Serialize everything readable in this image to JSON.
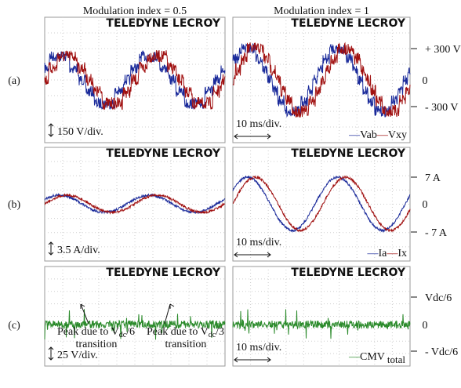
{
  "column_titles": [
    "Modulation index = 0.5",
    "Modulation index = 1"
  ],
  "logo": "TELEDYNE LECROY",
  "rows": [
    {
      "label": "(a)",
      "scale": "150 V/div.",
      "time_scale": "10 ms/div.",
      "axis_labels": [
        "+ 300 V",
        "0",
        "- 300 V"
      ],
      "legend": [
        "Vab",
        "Vxy"
      ]
    },
    {
      "label": "(b)",
      "scale": "3.5 A/div.",
      "time_scale": "10 ms/div.",
      "axis_labels": [
        "7 A",
        "0",
        "- 7 A"
      ],
      "legend": [
        "Ia",
        "Ix"
      ]
    },
    {
      "label": "(c)",
      "scale": "25 V/div.",
      "time_scale": "10 ms/div.",
      "axis_labels": [
        "Vdc/6",
        "0",
        "- Vdc/6"
      ],
      "legend_main": "CMV",
      "legend_sub": "total"
    }
  ],
  "annotations": [
    {
      "text": "Peak due to V",
      "sub": "dc",
      "after": "/6",
      "line2": "transition"
    },
    {
      "text": "Peak due to V",
      "sub": "dc",
      "after": "/3",
      "line2": "transition"
    }
  ]
}
